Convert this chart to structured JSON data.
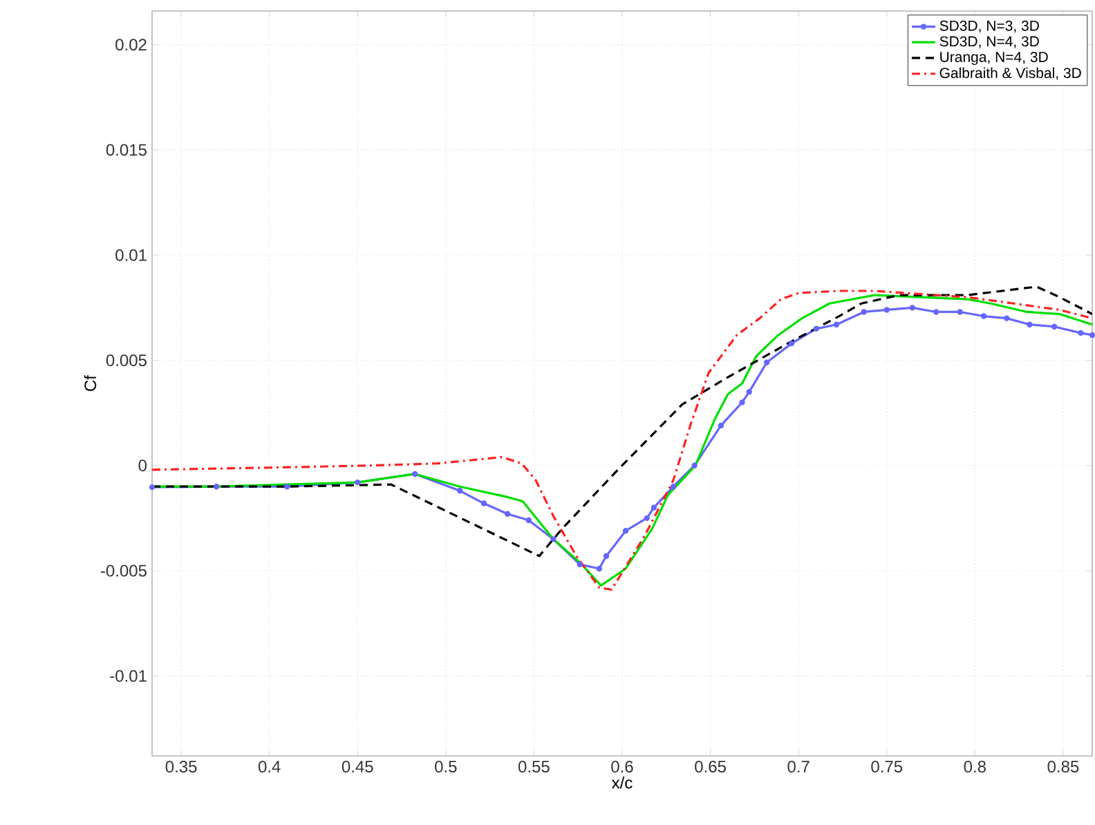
{
  "chart_data": {
    "type": "line",
    "xlabel": "x/c",
    "ylabel": "Cf",
    "xlim": [
      0.3335,
      0.8665
    ],
    "xticks": [
      0.35,
      0.4,
      0.45,
      0.5,
      0.55,
      0.6,
      0.65,
      0.7,
      0.75,
      0.8,
      0.85
    ],
    "ylim": [
      -0.0138,
      0.0216
    ],
    "yticks": [
      -0.01,
      -0.005,
      0,
      0.005,
      0.01,
      0.015,
      0.02
    ],
    "grid": true,
    "legend": "top right",
    "series": [
      {
        "name": "SD3D, N=3, 3D",
        "color": "#6666ff",
        "marker": "circle",
        "line_style": "solid",
        "x": [
          0.3335,
          0.37,
          0.41,
          0.45,
          0.4825,
          0.508,
          0.5216,
          0.535,
          0.547,
          0.561,
          0.576,
          0.587,
          0.591,
          0.602,
          0.614,
          0.618,
          0.629,
          0.641,
          0.656,
          0.668,
          0.672,
          0.682,
          0.696,
          0.71,
          0.7215,
          0.737,
          0.75,
          0.7645,
          0.778,
          0.7915,
          0.805,
          0.818,
          0.831,
          0.845,
          0.86,
          0.8665
        ],
        "values": [
          -0.00103,
          -0.001,
          -0.001,
          -0.0008,
          -0.0004,
          -0.0012,
          -0.0018,
          -0.0023,
          -0.0026,
          -0.0035,
          -0.0047,
          -0.0049,
          -0.0043,
          -0.0031,
          -0.0025,
          -0.002,
          -0.001,
          0,
          0.0019,
          0.003,
          0.0035,
          0.0049,
          0.0058,
          0.0065,
          0.0067,
          0.0073,
          0.0074,
          0.0075,
          0.0073,
          0.0073,
          0.0071,
          0.007,
          0.0067,
          0.0066,
          0.0063,
          0.0062
        ]
      },
      {
        "name": "SD3D, N=4, 3D",
        "color": "#00dd00",
        "line_style": "solid",
        "x": [
          0.3335,
          0.37,
          0.41,
          0.45,
          0.4825,
          0.508,
          0.535,
          0.5436,
          0.561,
          0.576,
          0.588,
          0.602,
          0.617,
          0.626,
          0.6415,
          0.6525,
          0.66,
          0.668,
          0.676,
          0.6885,
          0.702,
          0.7175,
          0.743,
          0.77,
          0.796,
          0.809,
          0.8295,
          0.848,
          0.8665
        ],
        "values": [
          -0.001,
          -0.001,
          -0.0009,
          -0.0008,
          -0.0004,
          -0.001,
          -0.0015,
          -0.0017,
          -0.0035,
          -0.0046,
          -0.0057,
          -0.0049,
          -0.003,
          -0.0014,
          0,
          0.0022,
          0.0034,
          0.0039,
          0.0052,
          0.0062,
          0.007,
          0.0077,
          0.0081,
          0.008,
          0.0079,
          0.0077,
          0.0073,
          0.0072,
          0.0067
        ]
      },
      {
        "name": "Uranga, N=4, 3D",
        "color": "#000000",
        "line_style": "dashed",
        "x": [
          0.3335,
          0.41,
          0.469,
          0.553,
          0.566,
          0.5976,
          0.634,
          0.66,
          0.696,
          0.723,
          0.7355,
          0.757,
          0.796,
          0.835,
          0.848,
          0.8665
        ],
        "values": [
          -0.001,
          -0.001,
          -0.0009,
          -0.0043,
          -0.003,
          -0.0002,
          0.0029,
          0.0042,
          0.0059,
          0.0071,
          0.0077,
          0.0081,
          0.0081,
          0.0085,
          0.008,
          0.0072
        ]
      },
      {
        "name": "Galbraith & Visbal, 3D",
        "color": "#ff2222",
        "line_style": "dashdot",
        "x": [
          0.3335,
          0.4,
          0.4565,
          0.4955,
          0.532,
          0.543,
          0.551,
          0.561,
          0.574,
          0.587,
          0.594,
          0.613,
          0.629,
          0.639,
          0.649,
          0.665,
          0.678,
          0.69,
          0.7,
          0.723,
          0.743,
          0.778,
          0.796,
          0.822,
          0.848,
          0.8665
        ],
        "values": [
          -0.0002,
          -0.0001,
          0,
          0.0001,
          0.0004,
          0.0001,
          -0.0007,
          -0.0024,
          -0.0043,
          -0.0058,
          -0.0059,
          -0.0033,
          -0.0007,
          0.002,
          0.0044,
          0.0062,
          0.007,
          0.0079,
          0.0082,
          0.0083,
          0.0083,
          0.0081,
          0.008,
          0.0077,
          0.0074,
          0.007
        ]
      }
    ]
  }
}
